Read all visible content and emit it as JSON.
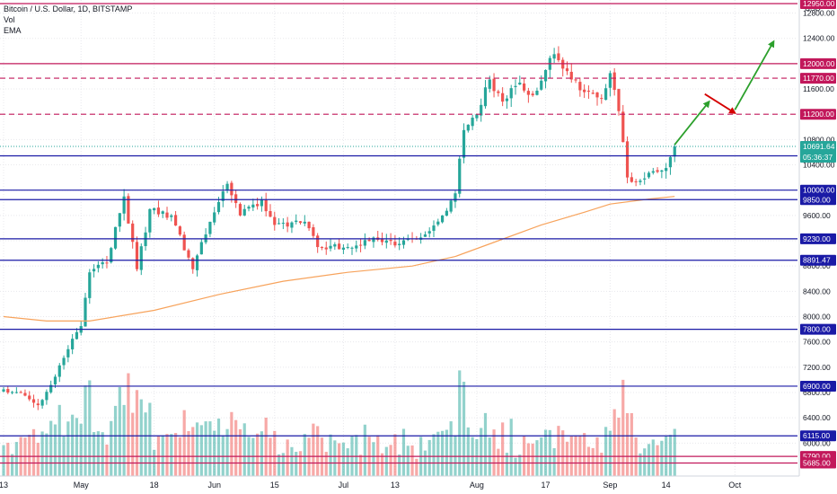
{
  "chart_data": {
    "type": "candlestick",
    "title": "Bitcoin / U.S. Dollar, 1D, BITSTAMP",
    "indicators": [
      "Vol",
      "EMA"
    ],
    "currency": "USD",
    "y_range": [
      5550,
      12950
    ],
    "price_axis_ticks": [
      "12800.00",
      "12400.00",
      "12000.00",
      "11600.00",
      "11200.00",
      "10800.00",
      "10400.00",
      "10000.00",
      "9600.00",
      "9200.00",
      "8800.00",
      "8400.00",
      "8000.00",
      "7600.00",
      "7200.00",
      "6800.00",
      "6400.00",
      "6000.00"
    ],
    "x_axis_ticks": [
      {
        "label": "13",
        "day": 0
      },
      {
        "label": "May",
        "day": 18
      },
      {
        "label": "18",
        "day": 35
      },
      {
        "label": "Jun",
        "day": 49
      },
      {
        "label": "15",
        "day": 63
      },
      {
        "label": "Jul",
        "day": 79
      },
      {
        "label": "13",
        "day": 91
      },
      {
        "label": "Aug",
        "day": 110
      },
      {
        "label": "17",
        "day": 126
      },
      {
        "label": "Sep",
        "day": 141
      },
      {
        "label": "14",
        "day": 154
      },
      {
        "label": "Oct",
        "day": 170
      }
    ],
    "horizontal_levels": [
      {
        "price": 12950,
        "label": "12950.00",
        "color": "#c2185b",
        "style": "solid"
      },
      {
        "price": 12000,
        "label": "12000.00",
        "color": "#c2185b",
        "style": "solid"
      },
      {
        "price": 11770,
        "label": "11770.00",
        "color": "#c2185b",
        "style": "dashed"
      },
      {
        "price": 11200,
        "label": "11200.00",
        "color": "#c2185b",
        "style": "dashed"
      },
      {
        "price": 10543,
        "label": "10543.00",
        "color": "#1a1aa6",
        "style": "solid"
      },
      {
        "price": 10000,
        "label": "10000.00",
        "color": "#1a1aa6",
        "style": "solid"
      },
      {
        "price": 9850,
        "label": "9850.00",
        "color": "#1a1aa6",
        "style": "solid"
      },
      {
        "price": 9230,
        "label": "9230.00",
        "color": "#1a1aa6",
        "style": "solid"
      },
      {
        "price": 8891.47,
        "label": "8891.47",
        "color": "#1a1aa6",
        "style": "solid"
      },
      {
        "price": 7800,
        "label": "7800.00",
        "color": "#1a1aa6",
        "style": "solid"
      },
      {
        "price": 6900,
        "label": "6900.00",
        "color": "#1a1aa6",
        "style": "solid"
      },
      {
        "price": 6115,
        "label": "6115.00",
        "color": "#1a1aa6",
        "style": "solid"
      },
      {
        "price": 5790,
        "label": "5790.00",
        "color": "#c2185b",
        "style": "solid"
      },
      {
        "price": 5685,
        "label": "5685.00",
        "color": "#c2185b",
        "style": "solid"
      }
    ],
    "last_price": {
      "price": 10691.64,
      "label": "10691.64",
      "countdown": "05:36:37",
      "color": "#26a69a"
    },
    "ema": [
      {
        "day": 0,
        "price": 8000
      },
      {
        "day": 10,
        "price": 7930
      },
      {
        "day": 20,
        "price": 7930
      },
      {
        "day": 35,
        "price": 8100
      },
      {
        "day": 50,
        "price": 8350
      },
      {
        "day": 65,
        "price": 8560
      },
      {
        "day": 80,
        "price": 8700
      },
      {
        "day": 95,
        "price": 8800
      },
      {
        "day": 105,
        "price": 8950
      },
      {
        "day": 115,
        "price": 9200
      },
      {
        "day": 125,
        "price": 9450
      },
      {
        "day": 135,
        "price": 9650
      },
      {
        "day": 141,
        "price": 9780
      },
      {
        "day": 150,
        "price": 9860
      },
      {
        "day": 156,
        "price": 9900
      }
    ],
    "arrows": [
      {
        "from": {
          "day": 156,
          "price": 10720
        },
        "to": {
          "day": 164,
          "price": 11400
        },
        "color": "#2ca02c"
      },
      {
        "from": {
          "day": 163,
          "price": 11520
        },
        "to": {
          "day": 170,
          "price": 11220
        },
        "color": "#d50000"
      },
      {
        "from": {
          "day": 170,
          "price": 11270
        },
        "to": {
          "day": 179,
          "price": 12350
        },
        "color": "#2ca02c"
      }
    ],
    "key_points": [
      {
        "day": 0,
        "price": 6850
      },
      {
        "day": 5,
        "price": 6750
      },
      {
        "day": 8,
        "price": 6600
      },
      {
        "day": 12,
        "price": 7050
      },
      {
        "day": 16,
        "price": 7650
      },
      {
        "day": 18,
        "price": 7850
      },
      {
        "day": 20,
        "price": 8700
      },
      {
        "day": 24,
        "price": 8850
      },
      {
        "day": 28,
        "price": 9900
      },
      {
        "day": 31,
        "price": 8750
      },
      {
        "day": 34,
        "price": 9700
      },
      {
        "day": 39,
        "price": 9600
      },
      {
        "day": 44,
        "price": 8750
      },
      {
        "day": 48,
        "price": 9500
      },
      {
        "day": 52,
        "price": 10100
      },
      {
        "day": 55,
        "price": 9600
      },
      {
        "day": 60,
        "price": 9850
      },
      {
        "day": 63,
        "price": 9450
      },
      {
        "day": 70,
        "price": 9500
      },
      {
        "day": 73,
        "price": 9100
      },
      {
        "day": 80,
        "price": 9100
      },
      {
        "day": 86,
        "price": 9250
      },
      {
        "day": 92,
        "price": 9150
      },
      {
        "day": 97,
        "price": 9250
      },
      {
        "day": 102,
        "price": 9600
      },
      {
        "day": 105,
        "price": 9950
      },
      {
        "day": 107,
        "price": 10950
      },
      {
        "day": 110,
        "price": 11200
      },
      {
        "day": 113,
        "price": 11750
      },
      {
        "day": 116,
        "price": 11400
      },
      {
        "day": 120,
        "price": 11700
      },
      {
        "day": 123,
        "price": 11500
      },
      {
        "day": 126,
        "price": 11900
      },
      {
        "day": 128,
        "price": 12150
      },
      {
        "day": 132,
        "price": 11750
      },
      {
        "day": 135,
        "price": 11550
      },
      {
        "day": 139,
        "price": 11450
      },
      {
        "day": 141,
        "price": 11850
      },
      {
        "day": 143,
        "price": 11250
      },
      {
        "day": 145,
        "price": 10200
      },
      {
        "day": 148,
        "price": 10150
      },
      {
        "day": 151,
        "price": 10300
      },
      {
        "day": 154,
        "price": 10350
      },
      {
        "day": 156,
        "price": 10691
      }
    ]
  }
}
